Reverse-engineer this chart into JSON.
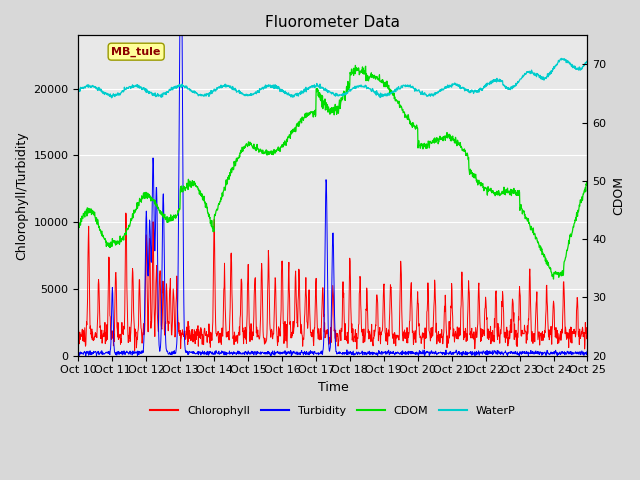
{
  "title": "Fluorometer Data",
  "xlabel": "Time",
  "ylabel_left": "Chlorophyll/Turbidity",
  "ylabel_right": "CDOM",
  "ylim_left": [
    0,
    24000
  ],
  "ylim_right": [
    20,
    75
  ],
  "xtick_labels": [
    "Oct 10",
    "Oct 11",
    "Oct 12",
    "Oct 13",
    "Oct 14",
    "Oct 15",
    "Oct 16",
    "Oct 17",
    "Oct 18",
    "Oct 19",
    "Oct 20",
    "Oct 21",
    "Oct 22",
    "Oct 23",
    "Oct 24",
    "Oct 25"
  ],
  "background_color": "#d8d8d8",
  "plot_bg_color": "#e8e8e8",
  "annotation_text": "MB_tule",
  "annotation_color": "#8b0000",
  "annotation_bg": "#ffff99",
  "colors": {
    "chlorophyll": "#ff0000",
    "turbidity": "#0000ff",
    "cdom": "#00dd00",
    "waterp": "#00cccc"
  },
  "legend_labels": [
    "Chlorophyll",
    "Turbidity",
    "CDOM",
    "WaterP"
  ],
  "title_fontsize": 11,
  "label_fontsize": 9,
  "tick_fontsize": 8,
  "figsize": [
    6.4,
    4.8
  ],
  "dpi": 100
}
